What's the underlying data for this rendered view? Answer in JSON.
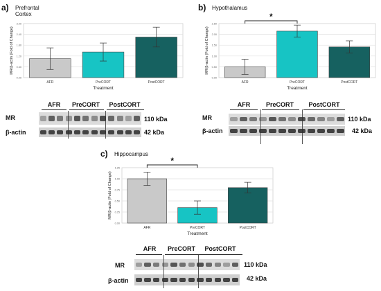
{
  "panels": {
    "a": {
      "letter": "a)",
      "region": "Prefrontal Cortex"
    },
    "b": {
      "letter": "b)",
      "region": "Hypothalamus"
    },
    "c": {
      "letter": "c)",
      "region": "Hippocampus"
    }
  },
  "chart_data": [
    {
      "type": "bar",
      "categories": [
        "AFR",
        "PreCORT",
        "PostCORT"
      ],
      "values": [
        1.05,
        1.42,
        2.25
      ],
      "errors": [
        0.6,
        0.5,
        0.55
      ],
      "colors": [
        "#c9c9c9",
        "#17c4c4",
        "#166160"
      ],
      "xlabel": "Treatment",
      "ylabel": "MR/β-actin (Fold of Change)",
      "ylim": [
        0,
        3
      ],
      "grid": true,
      "significance": null
    },
    {
      "type": "bar",
      "categories": [
        "AFR",
        "PreCORT",
        "PostCORT"
      ],
      "values": [
        0.5,
        2.15,
        1.42
      ],
      "errors": [
        0.35,
        0.28,
        0.28
      ],
      "colors": [
        "#c9c9c9",
        "#17c4c4",
        "#166160"
      ],
      "xlabel": "Treatment",
      "ylabel": "MR/β-actin (Fold of Change)",
      "ylim": [
        0,
        2.5
      ],
      "grid": true,
      "significance": {
        "label": "*",
        "from": 0,
        "to": 1
      }
    },
    {
      "type": "bar",
      "categories": [
        "AFR",
        "PreCORT",
        "PostCORT"
      ],
      "values": [
        1.0,
        0.35,
        0.8
      ],
      "errors": [
        0.15,
        0.15,
        0.12
      ],
      "colors": [
        "#c9c9c9",
        "#17c4c4",
        "#166160"
      ],
      "xlabel": "Treatment",
      "ylabel": "MR/β-actin (Fold of Change)",
      "ylim": [
        0,
        1.25
      ],
      "grid": true,
      "significance": {
        "label": "*",
        "from": 0,
        "to": 1
      }
    }
  ],
  "blots": [
    {
      "groups": [
        "AFR",
        "PreCORT",
        "PostCORT"
      ],
      "rows": [
        {
          "label": "MR",
          "kda": "110 kDa"
        },
        {
          "label": "β-actin",
          "kda": "42 kDa"
        }
      ]
    },
    {
      "groups": [
        "AFR",
        "PreCORT",
        "PostCORT"
      ],
      "rows": [
        {
          "label": "MR",
          "kda": "110 kDa"
        },
        {
          "label": "β-actin",
          "kda": "42 kDa"
        }
      ]
    },
    {
      "groups": [
        "AFR",
        "PreCORT",
        "PostCORT"
      ],
      "rows": [
        {
          "label": "MR",
          "kda": "110 kDa"
        },
        {
          "label": "β-actin",
          "kda": "42 kDa"
        }
      ]
    }
  ]
}
